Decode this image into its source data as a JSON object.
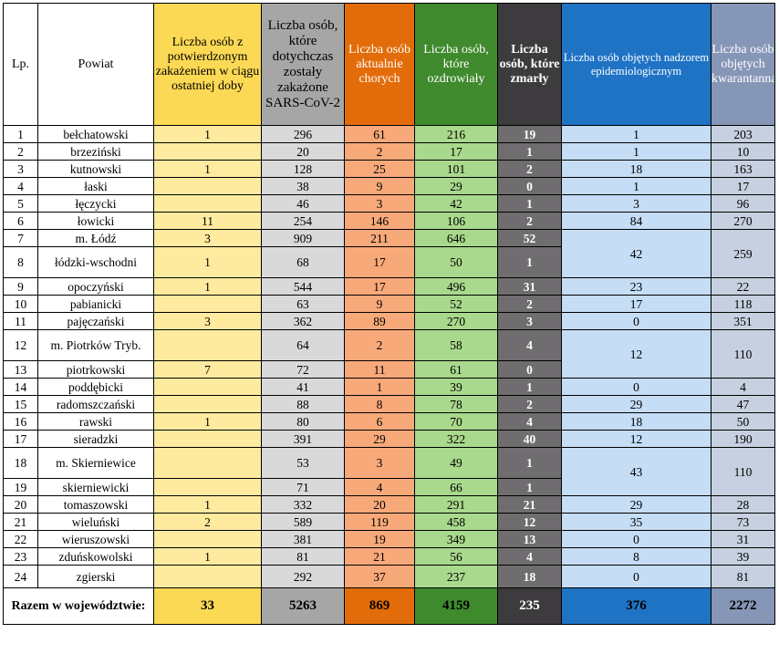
{
  "headers": {
    "lp": "Lp.",
    "powiat": "Powiat",
    "confirmed": "Liczba osób z potwierdzonym zakażeniem w ciągu ostatniej doby",
    "ever": "Liczba osób, które dotychczas zostały zakażone SARS-CoV-2",
    "active": "Liczba osób aktualnie chorych",
    "recovered": "Liczba osób, które ozdrowiały",
    "died": "Liczba osób, które zmarły",
    "supervision": "Liczba osób objętych nadzorem epidemiologicznym",
    "quarantine": "Liczba osób objętych kwarantanną"
  },
  "rows": [
    {
      "lp": "1",
      "name": "bełchatowski",
      "confirmed": "1",
      "ever": "296",
      "active": "61",
      "recovered": "216",
      "died": "19",
      "supervision": "1",
      "quarantine": "203"
    },
    {
      "lp": "2",
      "name": "brzeziński",
      "confirmed": "",
      "ever": "20",
      "active": "2",
      "recovered": "17",
      "died": "1",
      "supervision": "1",
      "quarantine": "10"
    },
    {
      "lp": "3",
      "name": "kutnowski",
      "confirmed": "1",
      "ever": "128",
      "active": "25",
      "recovered": "101",
      "died": "2",
      "supervision": "18",
      "quarantine": "163"
    },
    {
      "lp": "4",
      "name": "łaski",
      "confirmed": "",
      "ever": "38",
      "active": "9",
      "recovered": "29",
      "died": "0",
      "supervision": "1",
      "quarantine": "17"
    },
    {
      "lp": "5",
      "name": "łęczycki",
      "confirmed": "",
      "ever": "46",
      "active": "3",
      "recovered": "42",
      "died": "1",
      "supervision": "3",
      "quarantine": "96"
    },
    {
      "lp": "6",
      "name": "łowicki",
      "confirmed": "11",
      "ever": "254",
      "active": "146",
      "recovered": "106",
      "died": "2",
      "supervision": "84",
      "quarantine": "270"
    },
    {
      "lp": "7",
      "name": "m. Łódź",
      "confirmed": "3",
      "ever": "909",
      "active": "211",
      "recovered": "646",
      "died": "52"
    },
    {
      "lp": "8",
      "name": "łódzki-wschodni",
      "confirmed": "1",
      "ever": "68",
      "active": "17",
      "recovered": "50",
      "died": "1"
    },
    {
      "lp": "9",
      "name": "opoczyński",
      "confirmed": "1",
      "ever": "544",
      "active": "17",
      "recovered": "496",
      "died": "31",
      "supervision": "23",
      "quarantine": "22"
    },
    {
      "lp": "10",
      "name": "pabianicki",
      "confirmed": "",
      "ever": "63",
      "active": "9",
      "recovered": "52",
      "died": "2",
      "supervision": "17",
      "quarantine": "118"
    },
    {
      "lp": "11",
      "name": "pajęczański",
      "confirmed": "3",
      "ever": "362",
      "active": "89",
      "recovered": "270",
      "died": "3",
      "supervision": "0",
      "quarantine": "351"
    },
    {
      "lp": "12",
      "name": "m. Piotrków Tryb.",
      "confirmed": "",
      "ever": "64",
      "active": "2",
      "recovered": "58",
      "died": "4"
    },
    {
      "lp": "13",
      "name": "piotrkowski",
      "confirmed": "7",
      "ever": "72",
      "active": "11",
      "recovered": "61",
      "died": "0"
    },
    {
      "lp": "14",
      "name": "poddębicki",
      "confirmed": "",
      "ever": "41",
      "active": "1",
      "recovered": "39",
      "died": "1",
      "supervision": "0",
      "quarantine": "4"
    },
    {
      "lp": "15",
      "name": "radomszczański",
      "confirmed": "",
      "ever": "88",
      "active": "8",
      "recovered": "78",
      "died": "2",
      "supervision": "29",
      "quarantine": "47"
    },
    {
      "lp": "16",
      "name": "rawski",
      "confirmed": "1",
      "ever": "80",
      "active": "6",
      "recovered": "70",
      "died": "4",
      "supervision": "18",
      "quarantine": "50"
    },
    {
      "lp": "17",
      "name": "sieradzki",
      "confirmed": "",
      "ever": "391",
      "active": "29",
      "recovered": "322",
      "died": "40",
      "supervision": "12",
      "quarantine": "190"
    },
    {
      "lp": "18",
      "name": "m. Skierniewice",
      "confirmed": "",
      "ever": "53",
      "active": "3",
      "recovered": "49",
      "died": "1"
    },
    {
      "lp": "19",
      "name": "skierniewicki",
      "confirmed": "",
      "ever": "71",
      "active": "4",
      "recovered": "66",
      "died": "1"
    },
    {
      "lp": "20",
      "name": "tomaszowski",
      "confirmed": "1",
      "ever": "332",
      "active": "20",
      "recovered": "291",
      "died": "21",
      "supervision": "29",
      "quarantine": "28"
    },
    {
      "lp": "21",
      "name": "wieluński",
      "confirmed": "2",
      "ever": "589",
      "active": "119",
      "recovered": "458",
      "died": "12",
      "supervision": "35",
      "quarantine": "73"
    },
    {
      "lp": "22",
      "name": "wieruszowski",
      "confirmed": "",
      "ever": "381",
      "active": "19",
      "recovered": "349",
      "died": "13",
      "supervision": "0",
      "quarantine": "31"
    },
    {
      "lp": "23",
      "name": "zduńskowolski",
      "confirmed": "1",
      "ever": "81",
      "active": "21",
      "recovered": "56",
      "died": "4",
      "supervision": "8",
      "quarantine": "39"
    },
    {
      "lp": "24",
      "name": "zgierski",
      "confirmed": "",
      "ever": "292",
      "active": "37",
      "recovered": "237",
      "died": "18",
      "supervision": "0",
      "quarantine": "81"
    }
  ],
  "merged": {
    "lodz": {
      "supervision": "42",
      "quarantine": "259"
    },
    "piotrkow": {
      "supervision": "12",
      "quarantine": "110"
    },
    "skierniewice": {
      "supervision": "43",
      "quarantine": "110"
    }
  },
  "total": {
    "label": "Razem w województwie:",
    "confirmed": "33",
    "ever": "5263",
    "active": "869",
    "recovered": "4159",
    "died": "235",
    "supervision": "376",
    "quarantine": "2272"
  }
}
